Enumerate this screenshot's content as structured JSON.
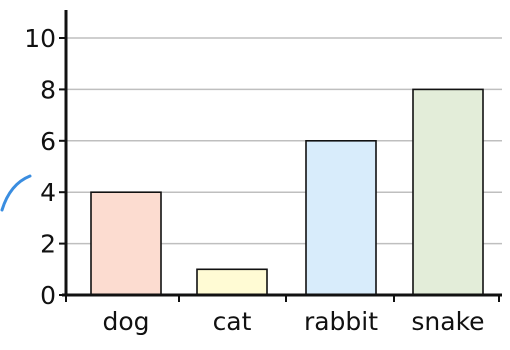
{
  "chart_data": {
    "type": "bar",
    "categories": [
      "dog",
      "cat",
      "rabbit",
      "snake"
    ],
    "values": [
      4,
      1,
      6,
      8
    ],
    "colors": [
      "#fcdcd0",
      "#fffbd4",
      "#d8ecfb",
      "#e3edd9"
    ],
    "ylim": [
      0,
      10
    ],
    "yticks": [
      0,
      2,
      4,
      6,
      8,
      10
    ],
    "ytick_labels": [
      "0",
      "2",
      "4",
      "6",
      "8",
      "10"
    ],
    "grid": true,
    "grid_color": "#bfbfbf",
    "bar_outline_color": "#111111",
    "axis_color": "#111111",
    "title": "",
    "xlabel": "",
    "ylabel": ""
  }
}
